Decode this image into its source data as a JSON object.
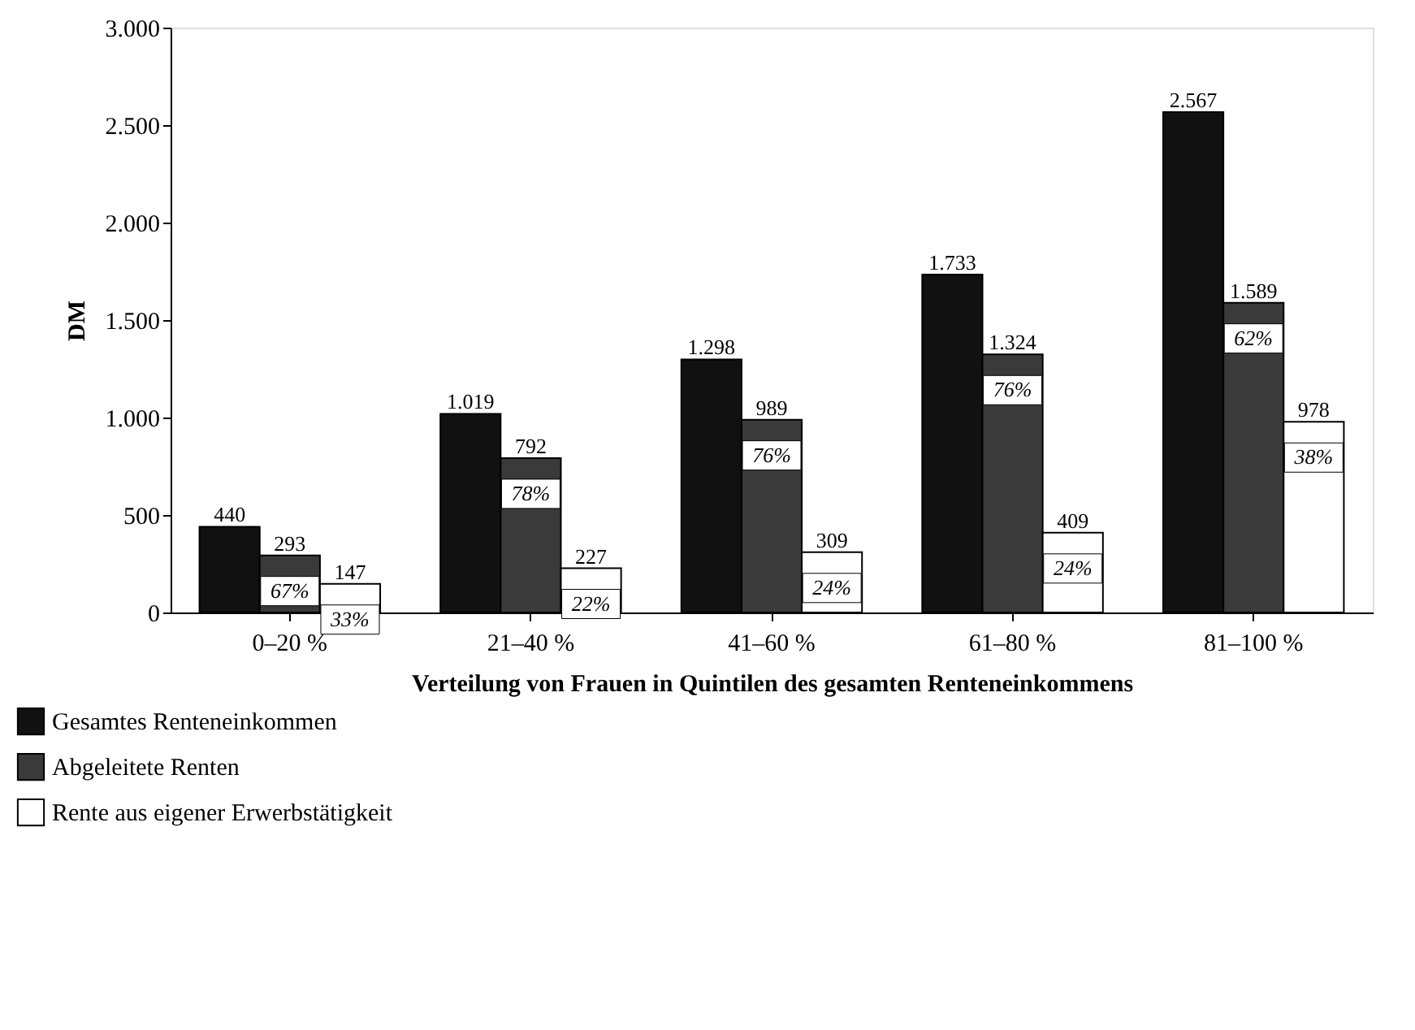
{
  "chart_data": {
    "type": "bar",
    "xlabel": "Verteilung von Frauen in Quintilen des gesamten Renteneinkommens",
    "ylabel": "DM",
    "categories": [
      "0–20 %",
      "21–40 %",
      "41–60 %",
      "61–80 %",
      "81–100 %"
    ],
    "series": [
      {
        "name": "Gesamtes Renteneinkommen",
        "color": "#111111",
        "values": [
          440,
          1019,
          1298,
          1733,
          2567
        ],
        "value_labels": [
          "440",
          "1.019",
          "1.298",
          "1.733",
          "2.567"
        ]
      },
      {
        "name": "Abgeleitete Renten",
        "color": "#3a3a3a",
        "values": [
          293,
          792,
          989,
          1324,
          1589
        ],
        "value_labels": [
          "293",
          "792",
          "989",
          "1.324",
          "1.589"
        ]
      },
      {
        "name": "Rente aus eigener Erwerbstätigkeit",
        "color": "#ffffff",
        "values": [
          147,
          227,
          309,
          409,
          978
        ],
        "value_labels": [
          "147",
          "227",
          "309",
          "409",
          "978"
        ]
      }
    ],
    "annotations": [
      "67%",
      "33%",
      "78%",
      "22%",
      "76%",
      "24%",
      "76%",
      "24%",
      "62%",
      "38%"
    ],
    "ylim": [
      0,
      3000
    ],
    "yticks": [
      {
        "value": 0,
        "label": "0"
      },
      {
        "value": 500,
        "label": "500"
      },
      {
        "value": 1000,
        "label": "1.000"
      },
      {
        "value": 1500,
        "label": "1.500"
      },
      {
        "value": 2000,
        "label": "2.000"
      },
      {
        "value": 2500,
        "label": "2.500"
      },
      {
        "value": 3000,
        "label": "3.000"
      }
    ],
    "grid": false,
    "legend": "bottom"
  }
}
